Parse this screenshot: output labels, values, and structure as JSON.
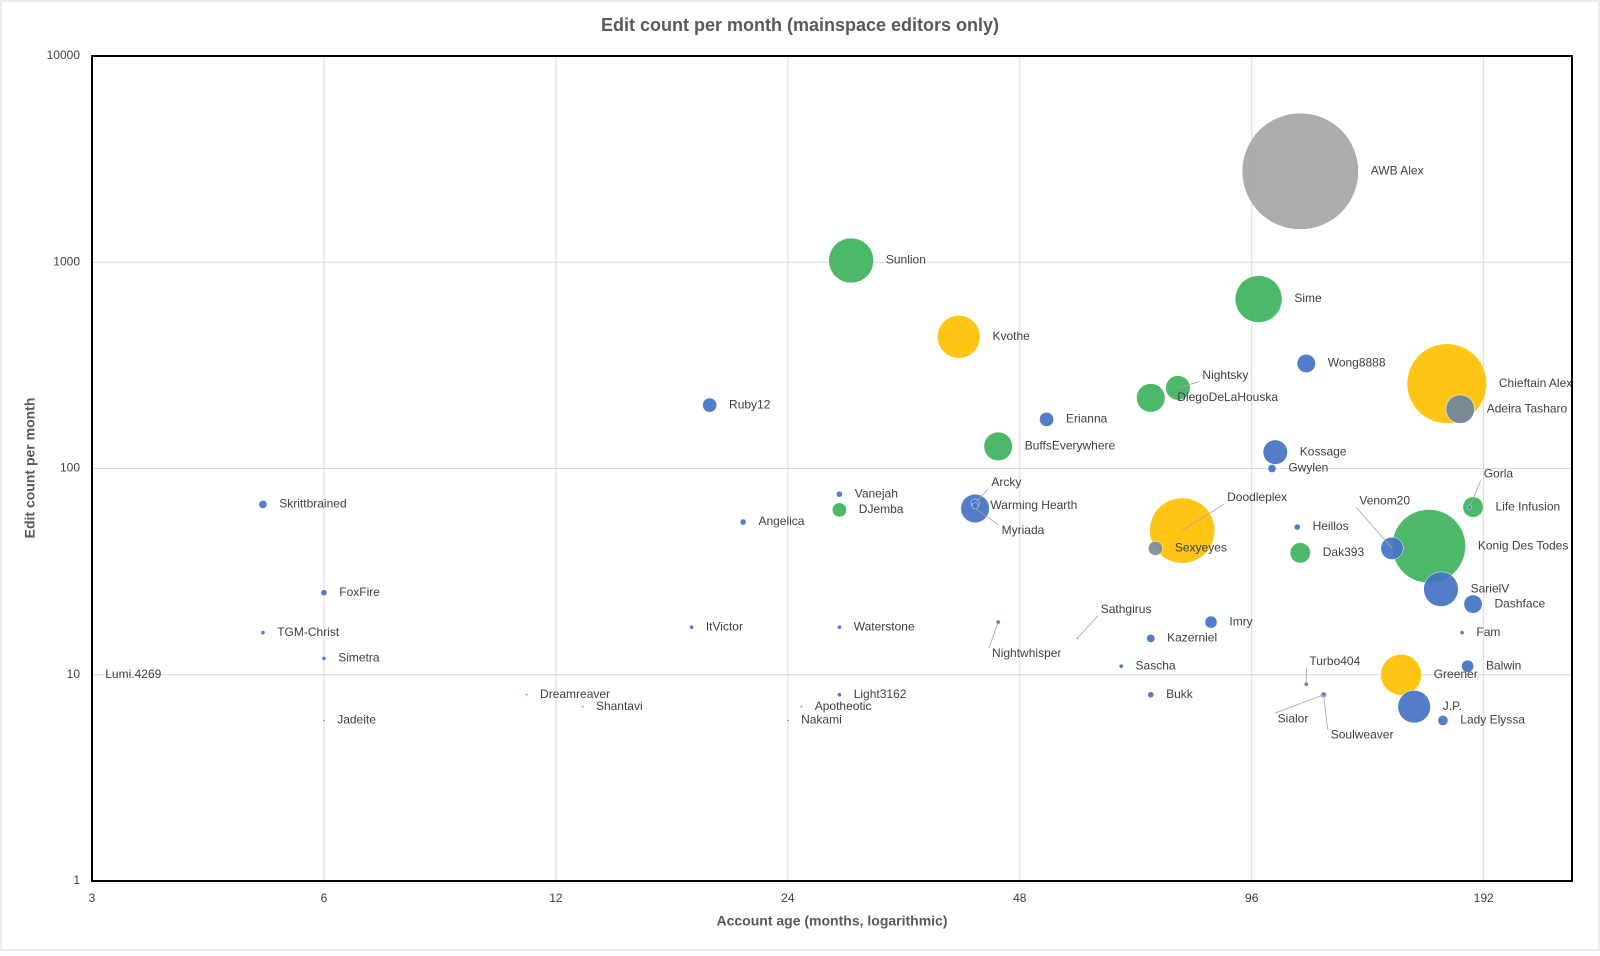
{
  "chart_data": {
    "type": "bubble",
    "title": "Edit count per month (mainspace editors only)",
    "x_label": "Account age (months, logarithmic)",
    "y_label": "Edit count per month",
    "xscale": "log",
    "yscale": "log",
    "grid": true,
    "xlim": [
      3,
      250
    ],
    "ylim": [
      1,
      10000
    ],
    "xticks": [
      3,
      6,
      12,
      24,
      48,
      96,
      192
    ],
    "yticks": [
      1,
      10,
      100,
      1000,
      10000
    ],
    "points": [
      {
        "label": "Lumi.4269",
        "x": 3,
        "y": 10,
        "size": 1,
        "color": "#4472c4"
      },
      {
        "label": "Skrittbrained",
        "x": 5,
        "y": 67,
        "size": 16,
        "color": "#4472c4"
      },
      {
        "label": "FoxFire",
        "x": 6,
        "y": 25,
        "size": 9,
        "color": "#4472c4"
      },
      {
        "label": "TGM-Christ",
        "x": 5,
        "y": 16,
        "size": 4,
        "color": "#4472c4"
      },
      {
        "label": "Simetra",
        "x": 6,
        "y": 12,
        "size": 4,
        "color": "#4472c4"
      },
      {
        "label": "Jadeite",
        "x": 6,
        "y": 6,
        "size": 1,
        "color": "#4472c4"
      },
      {
        "label": "Dreamreaver",
        "x": 11,
        "y": 8,
        "size": 1,
        "color": "#4472c4"
      },
      {
        "label": "Shantavi",
        "x": 13,
        "y": 7,
        "size": 1,
        "color": "#4472c4"
      },
      {
        "label": "ItVictor",
        "x": 18,
        "y": 17,
        "size": 4,
        "color": "#4472c4"
      },
      {
        "label": "Ruby12",
        "x": 19,
        "y": 203,
        "size": 49,
        "color": "#4472c4"
      },
      {
        "label": "Angelica",
        "x": 21,
        "y": 55,
        "size": 9,
        "color": "#4472c4"
      },
      {
        "label": "Nakami",
        "x": 24,
        "y": 6,
        "size": 1,
        "color": "#4472c4"
      },
      {
        "label": "Apotheotic",
        "x": 25,
        "y": 7,
        "size": 1,
        "color": "#4472c4"
      },
      {
        "label": "Vanejah",
        "x": 28,
        "y": 75,
        "size": 9,
        "color": "#4472c4"
      },
      {
        "label": "DJemba",
        "x": 28,
        "y": 63,
        "size": 49,
        "color": "#3cb35b"
      },
      {
        "label": "Waterstone",
        "x": 28,
        "y": 17,
        "size": 4,
        "color": "#4472c4"
      },
      {
        "label": "Light3162",
        "x": 28,
        "y": 8,
        "size": 4,
        "color": "#4472c4"
      },
      {
        "label": "Sunlion",
        "x": 29,
        "y": 1020,
        "size": 484,
        "color": "#3cb35b"
      },
      {
        "label": "Kvothe",
        "x": 40,
        "y": 435,
        "size": 441,
        "color": "#ffc000"
      },
      {
        "label": "Myriada",
        "x": 42,
        "y": 64,
        "size": 196,
        "color": "#4472c4"
      },
      {
        "label": "Arcky",
        "x": 42,
        "y": 68,
        "size": 16,
        "color": "#4472c4"
      },
      {
        "label": "Warming Hearth",
        "x": 42,
        "y": 66,
        "size": 9,
        "color": "#4472c4"
      },
      {
        "label": "BuffsEverywhere",
        "x": 45,
        "y": 128,
        "size": 196,
        "color": "#3cb35b"
      },
      {
        "label": "Nightwhisper",
        "x": 45,
        "y": 18,
        "size": 4,
        "color": "#4472c4"
      },
      {
        "label": "Erianna",
        "x": 52,
        "y": 173,
        "size": 49,
        "color": "#4472c4"
      },
      {
        "label": "Sathgirus",
        "x": 57,
        "y": 15,
        "size": 1,
        "color": "#4472c4"
      },
      {
        "label": "Sascha",
        "x": 65,
        "y": 11,
        "size": 4,
        "color": "#4472c4"
      },
      {
        "label": "Kazerniel",
        "x": 71,
        "y": 15,
        "size": 16,
        "color": "#4472c4"
      },
      {
        "label": "DiegoDeLaHouska",
        "x": 71,
        "y": 220,
        "size": 196,
        "color": "#3cb35b"
      },
      {
        "label": "Nightsky",
        "x": 77,
        "y": 246,
        "size": 144,
        "color": "#3cb35b"
      },
      {
        "label": "Bukk",
        "x": 71,
        "y": 8,
        "size": 9,
        "color": "#4472c4"
      },
      {
        "label": "Doodleplex",
        "x": 78,
        "y": 50,
        "size": 1024,
        "color": "#ffc000"
      },
      {
        "label": "Sexyeyes",
        "x": 72,
        "y": 41,
        "size": 49,
        "color": "#7f8a99"
      },
      {
        "label": "Imry",
        "x": 85,
        "y": 18,
        "size": 36,
        "color": "#4472c4"
      },
      {
        "label": "Sime",
        "x": 98,
        "y": 663,
        "size": 529,
        "color": "#3cb35b"
      },
      {
        "label": "Kossage",
        "x": 103,
        "y": 120,
        "size": 144,
        "color": "#4472c4"
      },
      {
        "label": "Gwylen",
        "x": 102,
        "y": 100,
        "size": 16,
        "color": "#4472c4"
      },
      {
        "label": "AWB Alex",
        "x": 111,
        "y": 2760,
        "size": 3249,
        "color": "#a5a5a5"
      },
      {
        "label": "Wong8888",
        "x": 113,
        "y": 323,
        "size": 81,
        "color": "#4472c4"
      },
      {
        "label": "Heillos",
        "x": 110,
        "y": 52,
        "size": 9,
        "color": "#4472c4"
      },
      {
        "label": "Dak393",
        "x": 111,
        "y": 39,
        "size": 100,
        "color": "#3cb35b"
      },
      {
        "label": "Turbo404",
        "x": 113,
        "y": 9,
        "size": 4,
        "color": "#4472c4"
      },
      {
        "label": "Sialor",
        "x": 119,
        "y": 8,
        "size": 4,
        "color": "#4472c4"
      },
      {
        "label": "Soulweaver",
        "x": 119,
        "y": 8,
        "size": 9,
        "color": "#4472c4"
      },
      {
        "label": "Venom20",
        "x": 146,
        "y": 41,
        "size": 121,
        "color": "#4472c4"
      },
      {
        "label": "Greener",
        "x": 150,
        "y": 10,
        "size": 400,
        "color": "#ffc000"
      },
      {
        "label": "J.P.",
        "x": 156,
        "y": 7,
        "size": 256,
        "color": "#4472c4"
      },
      {
        "label": "Konig Des Todes",
        "x": 163,
        "y": 42,
        "size": 1296,
        "color": "#3cb35b"
      },
      {
        "label": "SarielV",
        "x": 169,
        "y": 26,
        "size": 289,
        "color": "#4472c4"
      },
      {
        "label": "Lady Elyssa",
        "x": 170,
        "y": 6,
        "size": 25,
        "color": "#4472c4"
      },
      {
        "label": "Chieftain Alex",
        "x": 172,
        "y": 258,
        "size": 1521,
        "color": "#ffc000"
      },
      {
        "label": "Adeira Tasharo",
        "x": 179,
        "y": 194,
        "size": 196,
        "color": "#6f84a0"
      },
      {
        "label": "Fam",
        "x": 180,
        "y": 16,
        "size": 4,
        "color": "#4472c4"
      },
      {
        "label": "Balwin",
        "x": 183,
        "y": 11,
        "size": 36,
        "color": "#4472c4"
      },
      {
        "label": "Gorla",
        "x": 184,
        "y": 65,
        "size": 4,
        "color": "#4472c4"
      },
      {
        "label": "Life Infusion",
        "x": 186,
        "y": 65,
        "size": 100,
        "color": "#3cb35b"
      },
      {
        "label": "Dashface",
        "x": 186,
        "y": 22,
        "size": 81,
        "color": "#4472c4"
      }
    ]
  }
}
